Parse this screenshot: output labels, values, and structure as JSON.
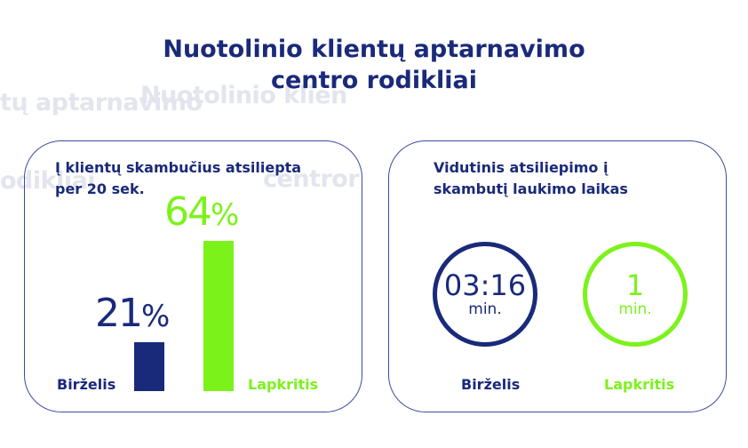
{
  "page": {
    "title_line1": "Nuotolinio klientų aptarnavimo",
    "title_line2": "centro rodikliai",
    "ghost_lines": [
      "tų aptarnavimo",
      "Nuotolinio klien",
      "odikliai",
      "centror"
    ]
  },
  "colors": {
    "navy": "#1a2a7a",
    "green": "#7cf21b",
    "border": "#3b4aa0"
  },
  "chart_data": [
    {
      "type": "bar",
      "title": "Į klientų skambučius atsiliepta per 20 sek.",
      "categories": [
        "Birželis",
        "Lapkritis"
      ],
      "values": [
        21,
        64
      ],
      "value_labels": [
        "21%",
        "64%"
      ],
      "ylabel": "",
      "ylim": [
        0,
        70
      ],
      "colors": [
        "#1a2a7a",
        "#7cf21b"
      ]
    },
    {
      "type": "table",
      "title": "Vidutinis atsiliepimo į skambutį laukimo laikas",
      "categories": [
        "Birželis",
        "Lapkritis"
      ],
      "values": [
        "03:16",
        "1"
      ],
      "unit": "min.",
      "colors": [
        "#1a2a7a",
        "#7cf21b"
      ]
    }
  ],
  "cards": {
    "left": {
      "title_line1": "Į klientų skambučius atsiliepta",
      "title_line2": "per 20 sek."
    },
    "right": {
      "title_line1": "Vidutinis atsiliepimo į",
      "title_line2": "skambutį laukimo laikas"
    }
  }
}
